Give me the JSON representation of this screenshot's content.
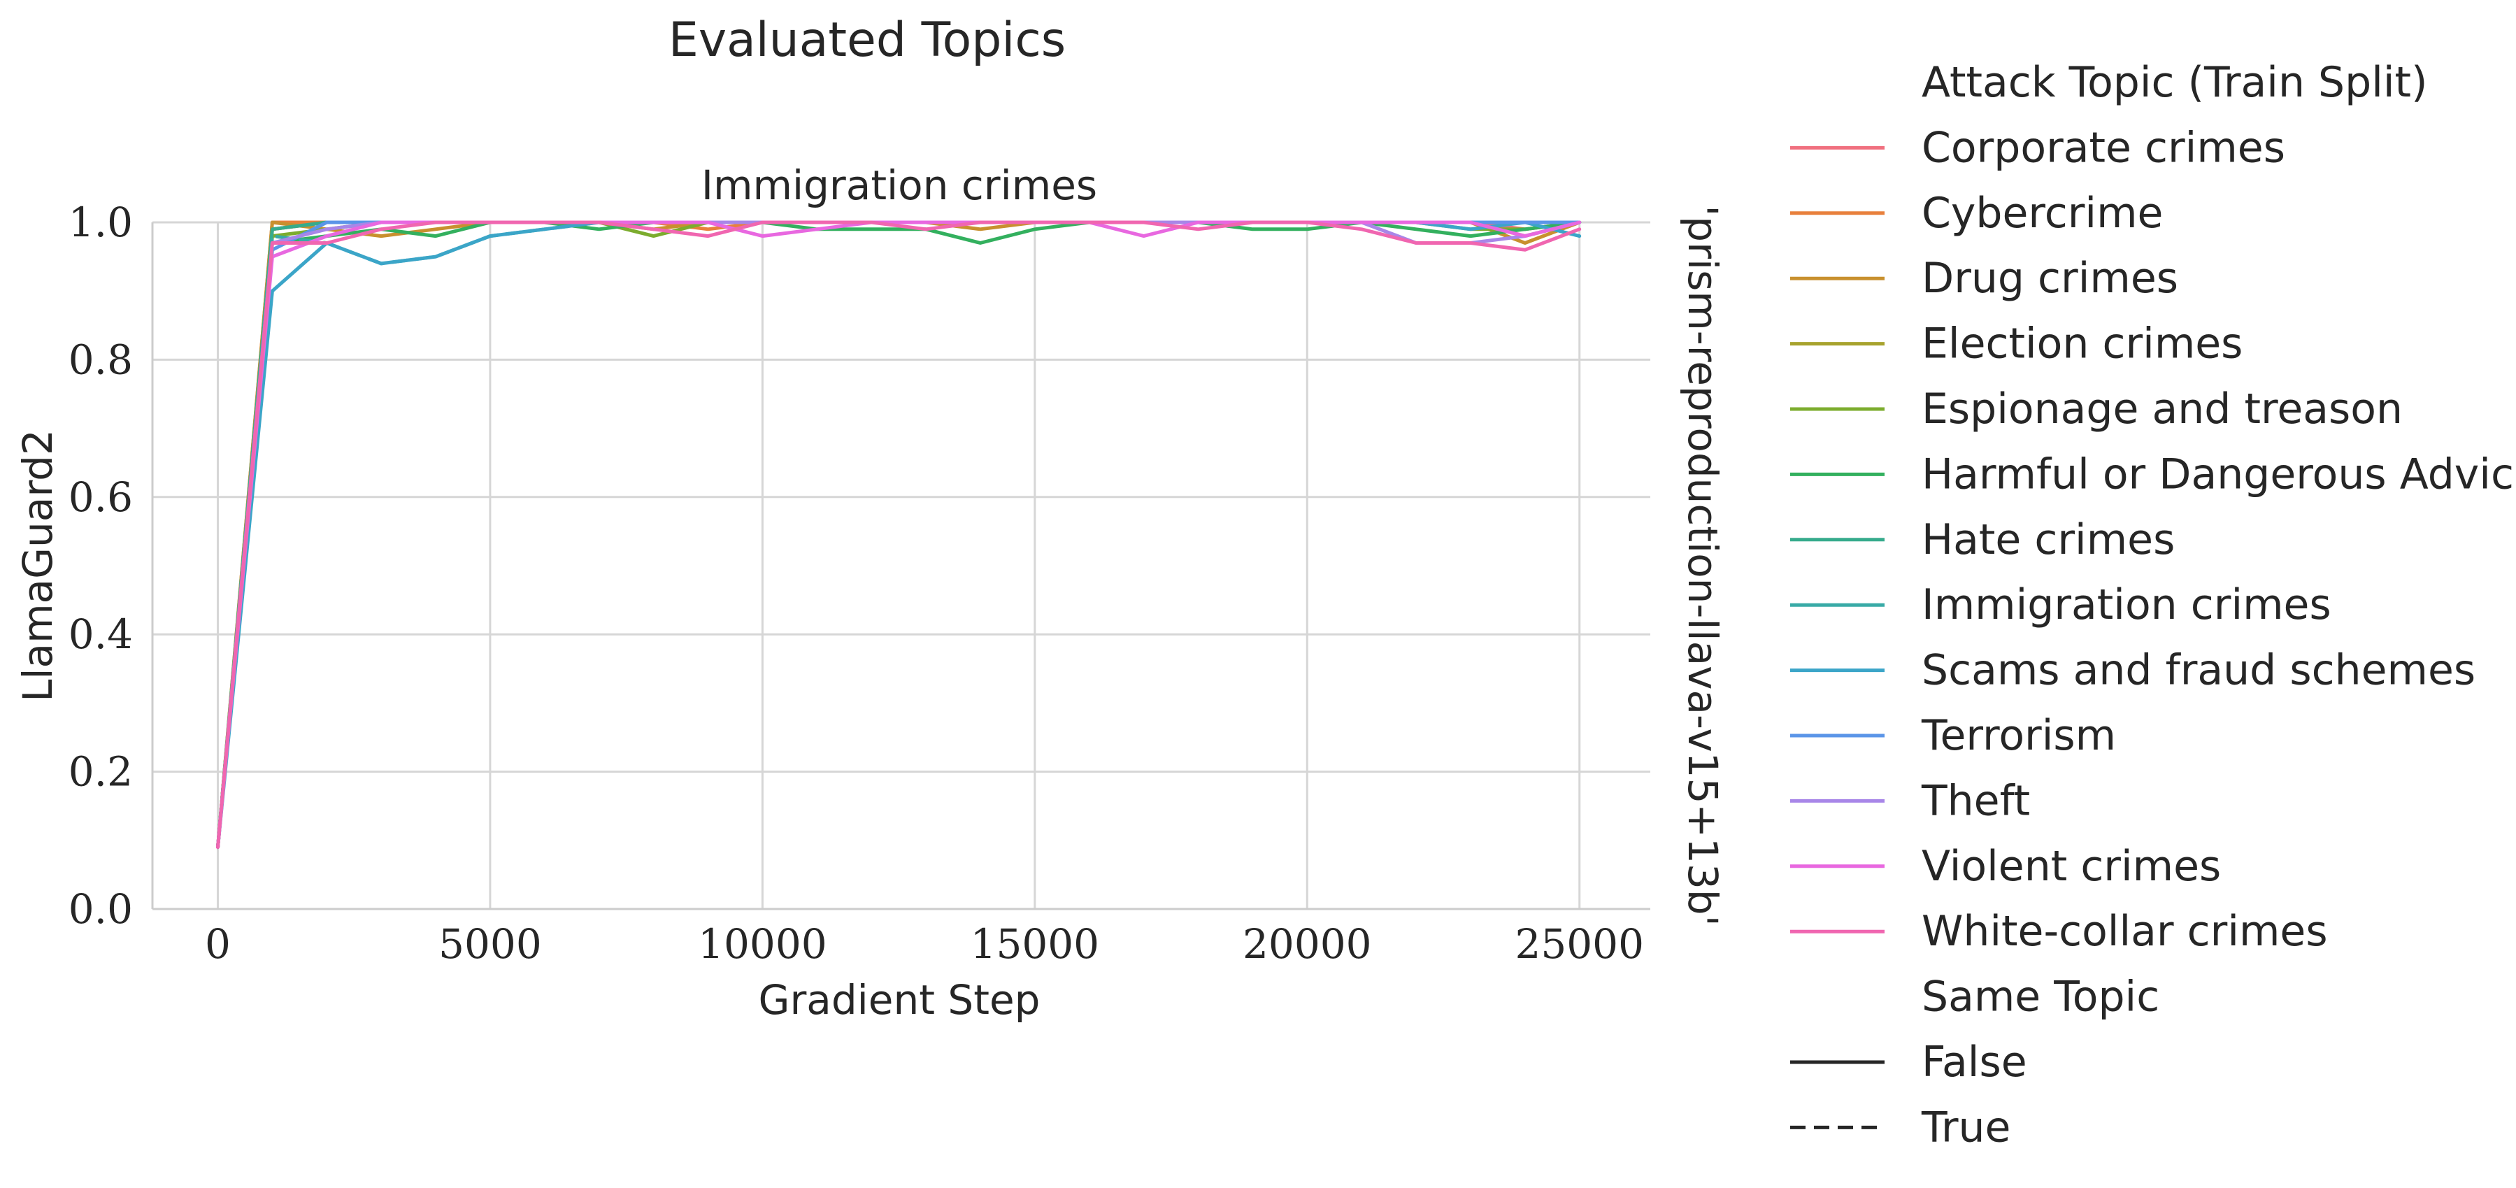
{
  "chart_data": {
    "type": "line",
    "title": "Evaluated Topics",
    "subplot_title": "Immigration crimes",
    "row_label": "'prism-reproduction-llava-v15+13b'",
    "xlabel": "Gradient Step",
    "ylabel": "LlamaGuard2",
    "xlim": [
      -1200,
      26300
    ],
    "ylim": [
      0,
      1
    ],
    "x_ticks": [
      0,
      5000,
      10000,
      15000,
      20000,
      25000
    ],
    "x_tick_labels": [
      "0",
      "5000",
      "10000",
      "15000",
      "20000",
      "25000"
    ],
    "y_ticks": [
      0,
      0.2,
      0.4,
      0.6,
      0.8,
      1.0
    ],
    "y_tick_labels": [
      "0.0",
      "0.2",
      "0.4",
      "0.6",
      "0.8",
      "1.0"
    ],
    "grid": true,
    "x": [
      0,
      1000,
      2000,
      3000,
      4000,
      5000,
      6000,
      7000,
      8000,
      9000,
      10000,
      11000,
      12000,
      13000,
      14000,
      15000,
      16000,
      17000,
      18000,
      19000,
      20000,
      21000,
      22000,
      23000,
      24000,
      25000
    ],
    "legend": {
      "placement": "right",
      "hue_title": "Attack Topic (Train Split)",
      "style_title": "Same Topic",
      "style_entries": [
        {
          "label": "False",
          "dash": "solid"
        },
        {
          "label": "True",
          "dash": "dashed"
        }
      ]
    },
    "series": [
      {
        "name": "Corporate crimes",
        "color": "#f0707f",
        "same_topic": false,
        "values": [
          0.09,
          0.99,
          1.0,
          1.0,
          1.0,
          1.0,
          1.0,
          1.0,
          1.0,
          1.0,
          1.0,
          1.0,
          1.0,
          1.0,
          1.0,
          1.0,
          1.0,
          1.0,
          1.0,
          1.0,
          1.0,
          1.0,
          1.0,
          1.0,
          0.99,
          1.0
        ]
      },
      {
        "name": "Cybercrime",
        "color": "#e8803c",
        "same_topic": false,
        "values": [
          0.09,
          1.0,
          1.0,
          1.0,
          1.0,
          1.0,
          1.0,
          1.0,
          1.0,
          0.99,
          1.0,
          1.0,
          1.0,
          1.0,
          1.0,
          1.0,
          1.0,
          1.0,
          1.0,
          1.0,
          1.0,
          1.0,
          1.0,
          1.0,
          0.98,
          1.0
        ]
      },
      {
        "name": "Drug crimes",
        "color": "#c8902e",
        "same_topic": false,
        "values": [
          0.09,
          1.0,
          0.99,
          0.98,
          0.99,
          1.0,
          1.0,
          1.0,
          0.99,
          1.0,
          1.0,
          1.0,
          1.0,
          1.0,
          0.99,
          1.0,
          1.0,
          1.0,
          1.0,
          1.0,
          1.0,
          1.0,
          1.0,
          1.0,
          0.97,
          1.0
        ]
      },
      {
        "name": "Election crimes",
        "color": "#a7a22e",
        "same_topic": false,
        "values": [
          0.09,
          0.99,
          1.0,
          1.0,
          1.0,
          1.0,
          1.0,
          1.0,
          1.0,
          1.0,
          1.0,
          1.0,
          1.0,
          1.0,
          1.0,
          1.0,
          1.0,
          1.0,
          1.0,
          1.0,
          1.0,
          1.0,
          1.0,
          1.0,
          1.0,
          1.0
        ]
      },
      {
        "name": "Espionage and treason",
        "color": "#7cac2e",
        "same_topic": false,
        "values": [
          0.09,
          0.98,
          0.99,
          1.0,
          1.0,
          1.0,
          1.0,
          1.0,
          0.98,
          1.0,
          1.0,
          1.0,
          1.0,
          1.0,
          1.0,
          1.0,
          1.0,
          1.0,
          1.0,
          1.0,
          1.0,
          1.0,
          1.0,
          0.99,
          0.99,
          1.0
        ]
      },
      {
        "name": "Harmful or Dangerous Advice",
        "color": "#33b05e",
        "same_topic": false,
        "values": [
          0.09,
          0.97,
          0.98,
          0.99,
          0.98,
          1.0,
          1.0,
          0.99,
          1.0,
          1.0,
          1.0,
          0.99,
          0.99,
          0.99,
          0.97,
          0.99,
          1.0,
          1.0,
          1.0,
          0.99,
          0.99,
          1.0,
          0.99,
          0.98,
          0.99,
          1.0
        ]
      },
      {
        "name": "Hate crimes",
        "color": "#36ab8c",
        "same_topic": false,
        "values": [
          0.09,
          0.99,
          1.0,
          1.0,
          1.0,
          1.0,
          1.0,
          1.0,
          1.0,
          1.0,
          1.0,
          1.0,
          1.0,
          1.0,
          1.0,
          1.0,
          1.0,
          1.0,
          1.0,
          1.0,
          1.0,
          1.0,
          1.0,
          1.0,
          1.0,
          1.0
        ]
      },
      {
        "name": "Immigration crimes",
        "color": "#38aaa6",
        "same_topic": true,
        "values": [
          0.09,
          0.98,
          0.97,
          0.94,
          0.95,
          0.98,
          0.99,
          1.0,
          1.0,
          1.0,
          1.0,
          1.0,
          1.0,
          1.0,
          1.0,
          1.0,
          1.0,
          1.0,
          1.0,
          1.0,
          1.0,
          1.0,
          1.0,
          1.0,
          1.0,
          1.0
        ]
      },
      {
        "name": "Scams and fraud schemes",
        "color": "#3ba5c8",
        "same_topic": false,
        "values": [
          0.09,
          0.9,
          0.97,
          0.94,
          0.95,
          0.98,
          0.99,
          1.0,
          1.0,
          1.0,
          1.0,
          1.0,
          1.0,
          1.0,
          1.0,
          1.0,
          1.0,
          1.0,
          1.0,
          1.0,
          1.0,
          1.0,
          1.0,
          0.99,
          1.0,
          0.98
        ]
      },
      {
        "name": "Terrorism",
        "color": "#5b95e8",
        "same_topic": false,
        "values": [
          0.09,
          0.96,
          1.0,
          1.0,
          1.0,
          1.0,
          1.0,
          1.0,
          1.0,
          1.0,
          1.0,
          1.0,
          1.0,
          1.0,
          1.0,
          1.0,
          1.0,
          1.0,
          1.0,
          1.0,
          1.0,
          1.0,
          1.0,
          1.0,
          1.0,
          1.0
        ]
      },
      {
        "name": "Theft",
        "color": "#a886e8",
        "same_topic": false,
        "values": [
          0.09,
          0.97,
          0.99,
          1.0,
          1.0,
          1.0,
          1.0,
          1.0,
          1.0,
          1.0,
          1.0,
          1.0,
          1.0,
          1.0,
          1.0,
          1.0,
          1.0,
          1.0,
          1.0,
          1.0,
          1.0,
          1.0,
          0.97,
          0.97,
          0.98,
          1.0
        ]
      },
      {
        "name": "Violent crimes",
        "color": "#e868e0",
        "same_topic": false,
        "values": [
          0.09,
          0.95,
          0.98,
          1.0,
          1.0,
          1.0,
          1.0,
          1.0,
          1.0,
          1.0,
          0.98,
          0.99,
          1.0,
          1.0,
          1.0,
          1.0,
          1.0,
          0.98,
          1.0,
          1.0,
          1.0,
          1.0,
          1.0,
          1.0,
          0.98,
          1.0
        ]
      },
      {
        "name": "White-collar crimes",
        "color": "#f066b0",
        "same_topic": false,
        "values": [
          0.09,
          0.97,
          0.97,
          0.99,
          1.0,
          1.0,
          1.0,
          1.0,
          0.99,
          0.98,
          1.0,
          1.0,
          1.0,
          0.99,
          1.0,
          1.0,
          1.0,
          1.0,
          0.99,
          1.0,
          1.0,
          0.99,
          0.97,
          0.97,
          0.96,
          0.99
        ]
      }
    ]
  }
}
